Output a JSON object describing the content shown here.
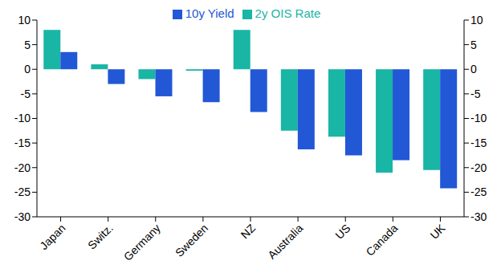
{
  "chart_data": {
    "type": "bar",
    "categories": [
      "Japan",
      "Switz.",
      "Germany",
      "Sweden",
      "NZ",
      "Australia",
      "US",
      "Canada",
      "UK"
    ],
    "series": [
      {
        "name": "2y OIS Rate",
        "color": "#19b5a5",
        "values": [
          8,
          1,
          -2,
          -0.3,
          8,
          -12.5,
          -13.7,
          -21,
          -20.5
        ]
      },
      {
        "name": "10y Yield",
        "color": "#2257d6",
        "values": [
          3.5,
          -3,
          -5.5,
          -6.7,
          -8.7,
          -16.3,
          -17.5,
          -18.5,
          -24.2
        ]
      }
    ],
    "ylim": [
      -30,
      10
    ],
    "yticks": [
      -30,
      -25,
      -20,
      -15,
      -10,
      -5,
      0,
      5,
      10
    ],
    "grid": false,
    "legend": "top"
  }
}
